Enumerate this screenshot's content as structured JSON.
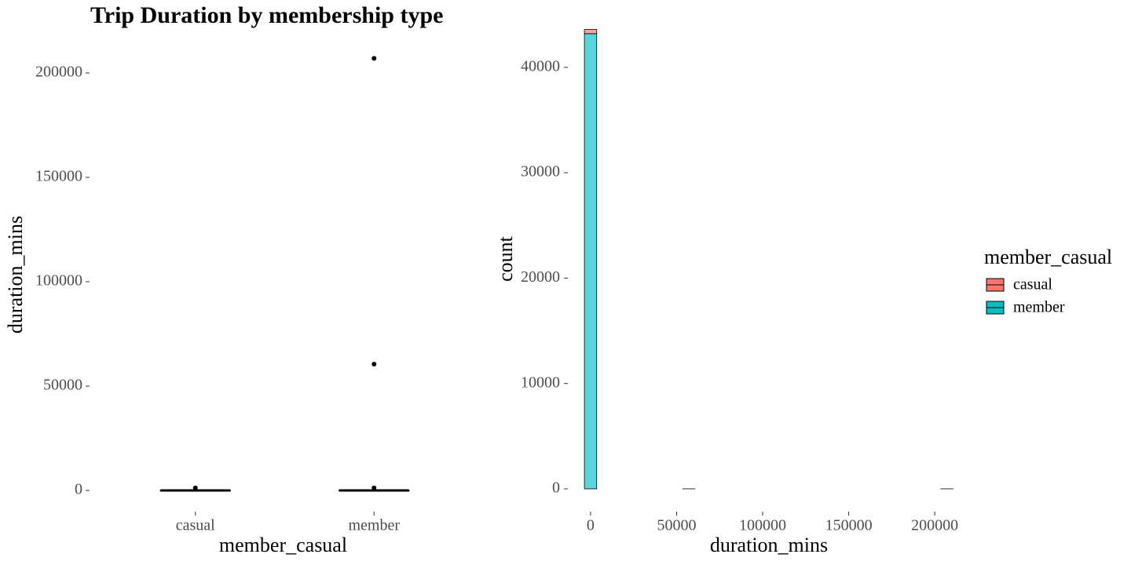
{
  "chart_data": [
    {
      "type": "box",
      "title": "Trip Duration by membership type",
      "x_label": "member_casual",
      "y_label": "duration_mins",
      "categories": [
        "casual",
        "member"
      ],
      "boxes": [
        {
          "whisker_low": 0,
          "q1": 6,
          "median": 11,
          "q3": 20,
          "whisker_high": 40,
          "outliers": [
            1200
          ]
        },
        {
          "whisker_low": 0,
          "q1": 5,
          "median": 9,
          "q3": 16,
          "whisker_high": 32,
          "outliers": [
            1200,
            60500,
            207000
          ]
        }
      ],
      "color": "#000000",
      "ylim": [
        -10000,
        211000
      ],
      "yticks": [
        0,
        50000,
        100000,
        150000,
        200000
      ]
    },
    {
      "type": "histogram",
      "x_label": "duration_mins",
      "y_label": "count",
      "bins": [
        -3570,
        3570,
        10710,
        17850,
        24990,
        32130,
        39270,
        46410,
        53550,
        60690,
        67830,
        74970,
        82110,
        89250,
        96390,
        103530,
        110670,
        117810,
        124950,
        132090,
        139230,
        146370,
        153510,
        160650,
        167790,
        174930,
        182070,
        189210,
        196350,
        203490,
        210630
      ],
      "series": [
        {
          "name": "casual",
          "color": "#F8766D",
          "values": [
            400,
            0,
            0,
            0,
            0,
            0,
            0,
            0,
            0,
            0,
            0,
            0,
            0,
            0,
            0,
            0,
            0,
            0,
            0,
            0,
            0,
            0,
            0,
            0,
            0,
            0,
            0,
            0,
            0,
            0
          ]
        },
        {
          "name": "member",
          "color": "#00BFC4",
          "values": [
            43200,
            0,
            0,
            0,
            0,
            0,
            0,
            0,
            1,
            0,
            0,
            0,
            0,
            0,
            0,
            0,
            0,
            0,
            0,
            0,
            0,
            0,
            0,
            0,
            0,
            0,
            0,
            0,
            0,
            1
          ]
        }
      ],
      "stack_order": [
        "member",
        "casual"
      ],
      "legend_title": "member_casual",
      "legend": "right",
      "xlim": [
        -10000,
        215000
      ],
      "xticks": [
        0,
        50000,
        100000,
        150000,
        200000
      ],
      "ylim": [
        -2200,
        45500
      ],
      "yticks": [
        0,
        10000,
        20000,
        30000,
        40000
      ]
    }
  ]
}
